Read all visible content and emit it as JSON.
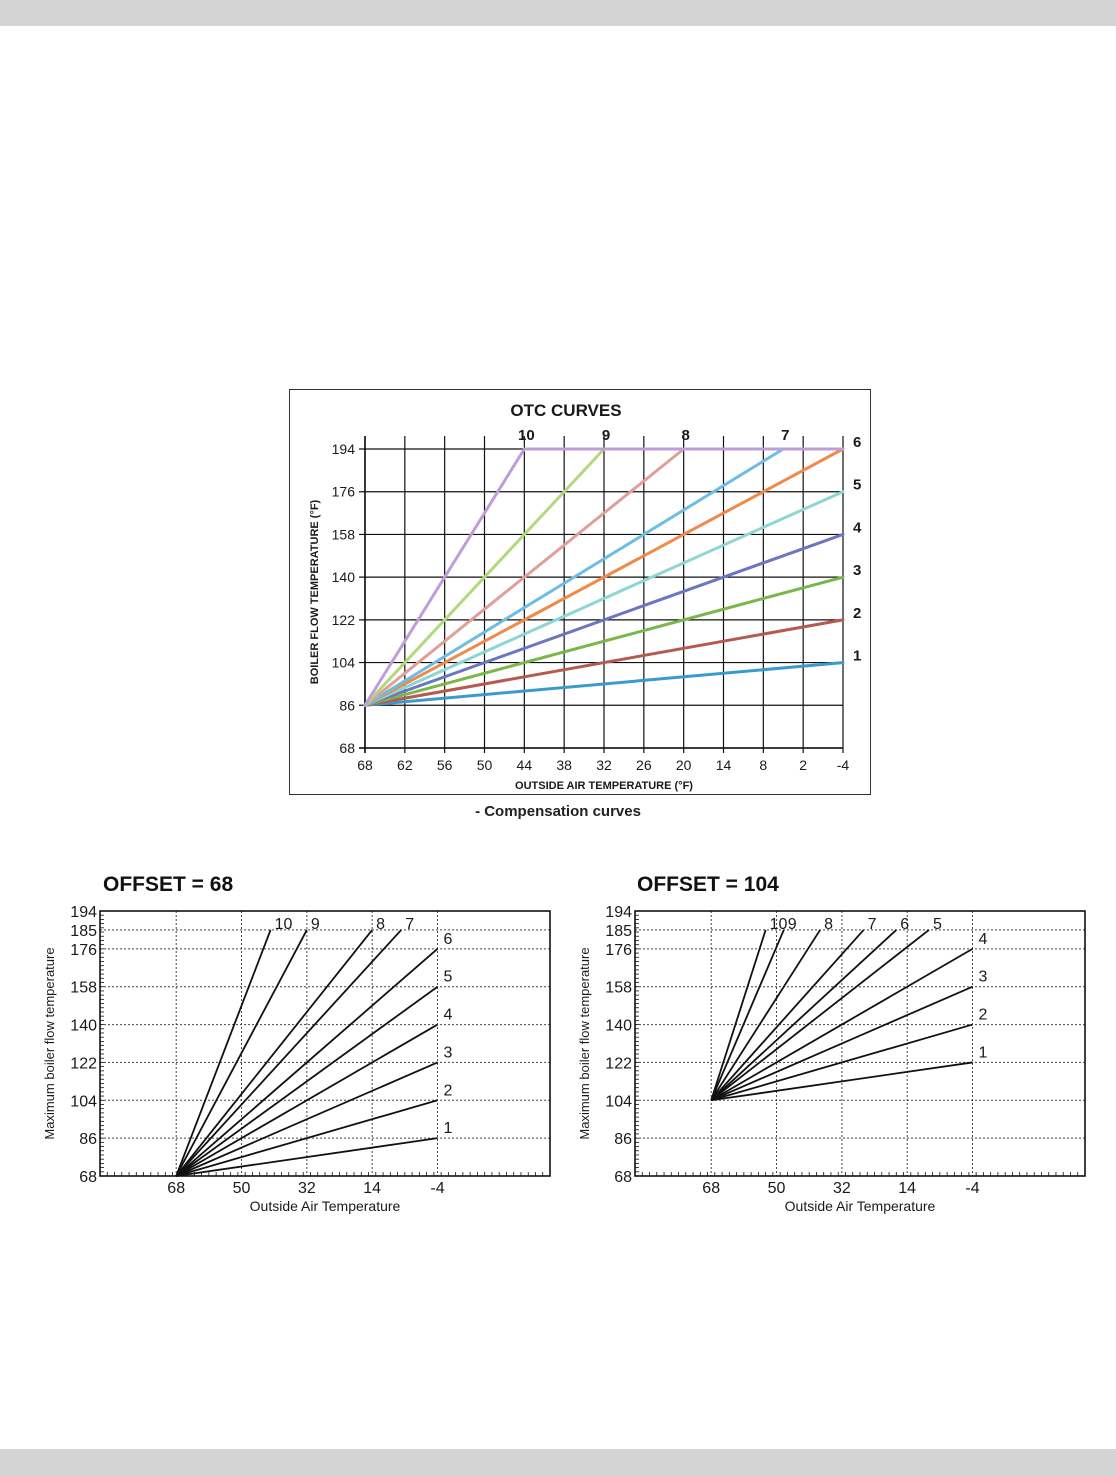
{
  "caption": "- Compensation curves",
  "chart_data": [
    {
      "id": "otc",
      "type": "line",
      "title": "OTC CURVES",
      "xlabel": "OUTSIDE AIR TEMPERATURE (°F)",
      "ylabel": "BOILER FLOW TEMPERATURE (°F)",
      "x_ticks": [
        "68",
        "62",
        "56",
        "50",
        "44",
        "38",
        "32",
        "26",
        "20",
        "14",
        "8",
        "2",
        "-4"
      ],
      "y_ticks": [
        "68",
        "86",
        "104",
        "122",
        "140",
        "158",
        "176",
        "194"
      ],
      "xlim": [
        68,
        -4
      ],
      "ylim": [
        68,
        194
      ],
      "y_max": 194,
      "grid": true,
      "series": [
        {
          "name": "1",
          "color": "#3a9ad0",
          "points": [
            [
              68,
              86
            ],
            [
              -4,
              104
            ]
          ]
        },
        {
          "name": "2",
          "color": "#b65a50",
          "points": [
            [
              68,
              86
            ],
            [
              -4,
              122
            ]
          ]
        },
        {
          "name": "3",
          "color": "#7ab648",
          "points": [
            [
              68,
              86
            ],
            [
              -4,
              140
            ]
          ]
        },
        {
          "name": "4",
          "color": "#6a76bf",
          "points": [
            [
              68,
              86
            ],
            [
              -4,
              158
            ]
          ]
        },
        {
          "name": "5",
          "color": "#8ed6d3",
          "points": [
            [
              68,
              86
            ],
            [
              -4,
              176
            ]
          ]
        },
        {
          "name": "6",
          "color": "#f08a4b",
          "points": [
            [
              68,
              86
            ],
            [
              -4,
              194
            ]
          ]
        },
        {
          "name": "7",
          "color": "#6cbde3",
          "points": [
            [
              68,
              86
            ],
            [
              5,
              194
            ]
          ]
        },
        {
          "name": "8",
          "color": "#e0a098",
          "points": [
            [
              68,
              86
            ],
            [
              20,
              194
            ]
          ]
        },
        {
          "name": "9",
          "color": "#b2d97d",
          "points": [
            [
              68,
              86
            ],
            [
              32,
              194
            ]
          ]
        },
        {
          "name": "10",
          "color": "#bf9ddb",
          "points": [
            [
              68,
              86
            ],
            [
              44,
              194
            ]
          ]
        }
      ]
    },
    {
      "id": "offset68",
      "type": "line",
      "title": "OFFSET = 68",
      "xlabel": "Outside Air Temperature",
      "ylabel": "Maximum boiler flow temperature",
      "x_ticks": [
        "68",
        "50",
        "32",
        "14",
        "-4"
      ],
      "y_ticks": [
        "68",
        "86",
        "104",
        "122",
        "140",
        "158",
        "176",
        "185",
        "194"
      ],
      "xlim": [
        89,
        -35
      ],
      "ylim": [
        68,
        194
      ],
      "grid": "dotted",
      "origin": [
        68,
        68
      ],
      "series": [
        {
          "name": "1",
          "end": [
            -4,
            86
          ]
        },
        {
          "name": "2",
          "end": [
            -4,
            104
          ]
        },
        {
          "name": "3",
          "end": [
            -4,
            122
          ]
        },
        {
          "name": "4",
          "end": [
            -4,
            140
          ]
        },
        {
          "name": "5",
          "end": [
            -4,
            158
          ]
        },
        {
          "name": "6",
          "end": [
            -4,
            176
          ]
        },
        {
          "name": "7",
          "end": [
            6,
            185
          ]
        },
        {
          "name": "8",
          "end": [
            14,
            185
          ]
        },
        {
          "name": "9",
          "end": [
            32,
            185
          ]
        },
        {
          "name": "10",
          "end": [
            42,
            185
          ]
        }
      ]
    },
    {
      "id": "offset104",
      "type": "line",
      "title": "OFFSET = 104",
      "xlabel": "Outside Air Temperature",
      "ylabel": "Maximum boiler flow temperature",
      "x_ticks": [
        "68",
        "50",
        "32",
        "14",
        "-4"
      ],
      "y_ticks": [
        "68",
        "86",
        "104",
        "122",
        "140",
        "158",
        "176",
        "185",
        "194"
      ],
      "xlim": [
        89,
        -35
      ],
      "ylim": [
        68,
        194
      ],
      "grid": "dotted",
      "origin": [
        68,
        104
      ],
      "series": [
        {
          "name": "1",
          "end": [
            -4,
            122
          ]
        },
        {
          "name": "2",
          "end": [
            -4,
            140
          ]
        },
        {
          "name": "3",
          "end": [
            -4,
            158
          ]
        },
        {
          "name": "4",
          "end": [
            -4,
            176
          ]
        },
        {
          "name": "5",
          "end": [
            8,
            185
          ]
        },
        {
          "name": "6",
          "end": [
            17,
            185
          ]
        },
        {
          "name": "7",
          "end": [
            26,
            185
          ]
        },
        {
          "name": "8",
          "end": [
            38,
            185
          ]
        },
        {
          "name": "9",
          "end": [
            48,
            185
          ]
        },
        {
          "name": "10",
          "end": [
            53,
            185
          ]
        }
      ]
    }
  ]
}
